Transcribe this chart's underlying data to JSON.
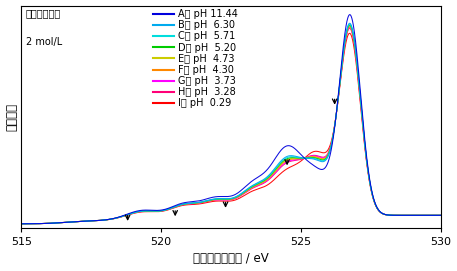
{
  "title_text": "酢酸水溶液｜",
  "title_line2": "2 mol/L",
  "xlabel": "発光エネルギー / eV",
  "ylabel": "相対強度",
  "xlim": [
    515,
    530
  ],
  "ylim": [
    -0.02,
    1.08
  ],
  "series": [
    {
      "label": "A： pH 11.44",
      "color": "#0000dd",
      "ph": 11.44
    },
    {
      "label": "B： pH  6.30",
      "color": "#00aaee",
      "ph": 6.3
    },
    {
      "label": "C： pH  5.71",
      "color": "#00dddd",
      "ph": 5.71
    },
    {
      "label": "D： pH  5.20",
      "color": "#00cc00",
      "ph": 5.2
    },
    {
      "label": "E： pH  4.73",
      "color": "#cccc00",
      "ph": 4.73
    },
    {
      "label": "F： pH  4.30",
      "color": "#ff8800",
      "ph": 4.3
    },
    {
      "label": "G： pH  3.73",
      "color": "#ff00ff",
      "ph": 3.73
    },
    {
      "label": "H： pH  3.28",
      "color": "#ff0077",
      "ph": 3.28
    },
    {
      "label": "I： pH  0.29",
      "color": "#ff0000",
      "ph": 0.29
    }
  ],
  "background_color": "#ffffff",
  "xticks": [
    515,
    520,
    525,
    530
  ],
  "fontsize_legend": 7.0,
  "fontsize_label": 8.5,
  "fontsize_tick": 8
}
